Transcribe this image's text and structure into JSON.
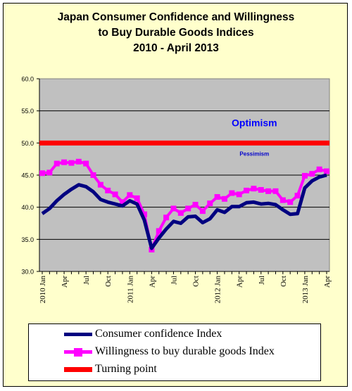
{
  "chart_data": {
    "type": "line",
    "title_lines": [
      "Japan Consumer Confidence and Willingness",
      "to Buy Durable Goods Indices",
      "2010 -  April 2013"
    ],
    "x": [
      "2010 Jan",
      "Feb",
      "Mar",
      "Apr",
      "May",
      "Jun",
      "Jul",
      "Aug",
      "Sep",
      "Oct",
      "Nov",
      "Dec",
      "2011 Jan",
      "Feb",
      "Mar",
      "Apr",
      "May",
      "Jun",
      "Jul",
      "Aug",
      "Sep",
      "Oct",
      "Nov",
      "Dec",
      "2012 Jan",
      "Feb",
      "Mar",
      "Apr",
      "May",
      "Jun",
      "Jul",
      "Aug",
      "Sep",
      "Oct",
      "Nov",
      "Dec",
      "2013 Jan",
      "Feb",
      "Mar",
      "Apr"
    ],
    "xtick_labels": [
      {
        "index": 0,
        "label": "2010 Jan"
      },
      {
        "index": 3,
        "label": "Apr"
      },
      {
        "index": 6,
        "label": "Jul"
      },
      {
        "index": 9,
        "label": "Oct"
      },
      {
        "index": 12,
        "label": "2011 Jan"
      },
      {
        "index": 15,
        "label": "Apr"
      },
      {
        "index": 18,
        "label": "Jul"
      },
      {
        "index": 21,
        "label": "Oct"
      },
      {
        "index": 24,
        "label": "2012 Jan"
      },
      {
        "index": 27,
        "label": "Apr"
      },
      {
        "index": 30,
        "label": "Jul"
      },
      {
        "index": 33,
        "label": "Oct"
      },
      {
        "index": 36,
        "label": "2013 Jan"
      },
      {
        "index": 39,
        "label": "Apr"
      }
    ],
    "series": [
      {
        "name": "Consumer confidence Index",
        "color": "#000080",
        "marker": "none",
        "values": [
          39.0,
          39.8,
          41.0,
          42.0,
          42.8,
          43.5,
          43.2,
          42.4,
          41.2,
          40.8,
          40.5,
          40.2,
          41.0,
          40.5,
          38.0,
          33.6,
          35.2,
          36.6,
          37.8,
          37.5,
          38.5,
          38.6,
          37.6,
          38.2,
          39.6,
          39.2,
          40.1,
          40.1,
          40.7,
          40.8,
          40.5,
          40.6,
          40.4,
          39.6,
          38.9,
          39.0,
          43.0,
          44.1,
          44.7,
          45.0
        ]
      },
      {
        "name": "Willingness to buy durable goods Index",
        "color": "#ff00ff",
        "marker": "square",
        "values": [
          45.3,
          45.4,
          46.8,
          47.0,
          46.9,
          47.1,
          46.8,
          45.0,
          43.5,
          42.6,
          42.0,
          40.8,
          41.9,
          41.4,
          38.9,
          33.4,
          36.3,
          38.4,
          39.8,
          39.1,
          39.8,
          40.4,
          39.4,
          40.6,
          41.6,
          41.3,
          42.2,
          42.0,
          42.6,
          42.9,
          42.7,
          42.5,
          42.5,
          41.1,
          40.8,
          41.8,
          44.9,
          45.2,
          45.9,
          45.6
        ]
      },
      {
        "name": "Turning point",
        "color": "#ff0000",
        "marker": "none",
        "values": [
          50,
          50,
          50,
          50,
          50,
          50,
          50,
          50,
          50,
          50,
          50,
          50,
          50,
          50,
          50,
          50,
          50,
          50,
          50,
          50,
          50,
          50,
          50,
          50,
          50,
          50,
          50,
          50,
          50,
          50,
          50,
          50,
          50,
          50,
          50,
          50,
          50,
          50,
          50,
          50
        ]
      }
    ],
    "ylim": [
      30.0,
      60.0
    ],
    "yticks": [
      "30.0",
      "35.0",
      "40.0",
      "45.0",
      "50.0",
      "55.0",
      "60.0"
    ],
    "ytick_values": [
      30,
      35,
      40,
      45,
      50,
      55,
      60
    ],
    "grid": true,
    "plot_background": "#c0c0c0",
    "annotations": [
      {
        "text": "Optimism",
        "color": "#0000ff",
        "x_index": 26,
        "y": 52.6,
        "size": "large"
      },
      {
        "text": "Pessimism",
        "color": "#0000cc",
        "x_index": 26,
        "y": 48.0,
        "size": "small"
      }
    ],
    "legend": {
      "placement": "bottom",
      "entries": [
        "Consumer confidence Index",
        "Willingness to buy durable goods Index",
        "Turning point"
      ]
    }
  }
}
